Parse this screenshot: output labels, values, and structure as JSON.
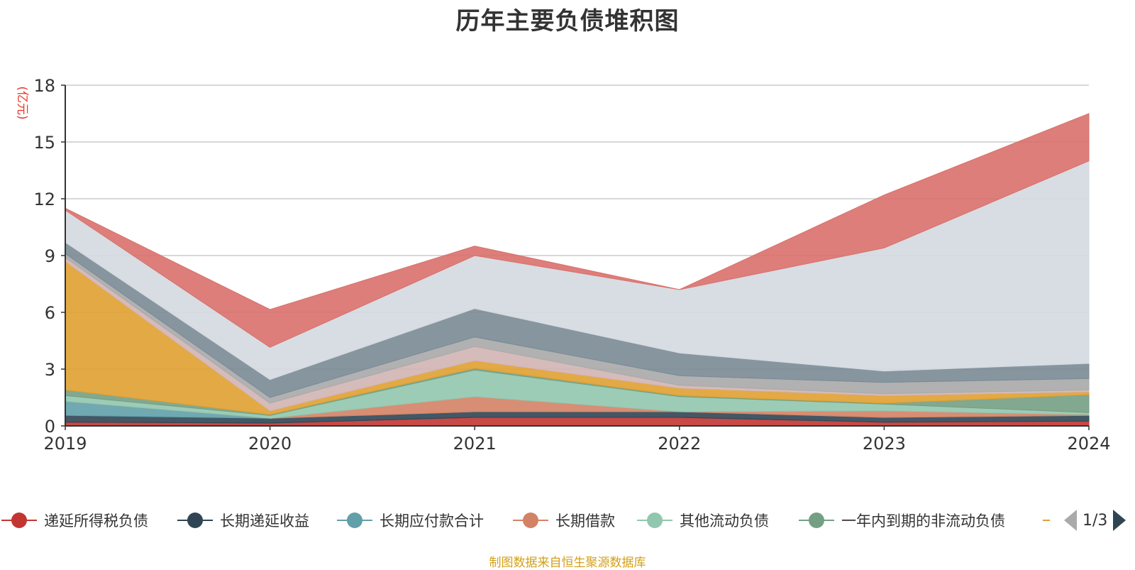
{
  "chart_data": {
    "type": "area",
    "title": "历年主要负债堆积图",
    "ylabel": "(亿元)",
    "ylim": [
      0,
      18
    ],
    "yticks": [
      "0",
      "3",
      "6",
      "9",
      "12",
      "15",
      "18"
    ],
    "x": [
      "2019",
      "2020",
      "2021",
      "2022",
      "2023",
      "2024"
    ],
    "grid": true,
    "legend_position": "bottom",
    "series": [
      {
        "name": "递延所得税负债",
        "color": "#c23531",
        "values": [
          0.2,
          0.15,
          0.45,
          0.45,
          0.2,
          0.25
        ]
      },
      {
        "name": "长期递延收益",
        "color": "#2f4554",
        "values": [
          0.35,
          0.25,
          0.3,
          0.3,
          0.25,
          0.3
        ]
      },
      {
        "name": "长期应付款合计",
        "color": "#61a0a8",
        "values": [
          0.75,
          0.0,
          0.0,
          0.0,
          0.0,
          0.0
        ]
      },
      {
        "name": "长期借款",
        "color": "#d48265",
        "values": [
          0.0,
          0.0,
          0.8,
          0.0,
          0.35,
          0.05
        ]
      },
      {
        "name": "其他流动负债",
        "color": "#91c7ae",
        "values": [
          0.3,
          0.15,
          1.4,
          0.8,
          0.35,
          0.1
        ]
      },
      {
        "name": "一年内到期的非流动负债",
        "color": "#749f83",
        "values": [
          0.3,
          0.05,
          0.1,
          0.05,
          0.05,
          0.95
        ]
      },
      {
        "name": "",
        "color": "#e0a030",
        "values": [
          6.8,
          0.2,
          0.4,
          0.4,
          0.4,
          0.15
        ]
      },
      {
        "name": "",
        "color": "#d2b4b4",
        "values": [
          0.2,
          0.4,
          0.75,
          0.15,
          0.1,
          0.1
        ]
      },
      {
        "name": "",
        "color": "#a9a9a9",
        "values": [
          0.2,
          0.3,
          0.5,
          0.5,
          0.6,
          0.6
        ]
      },
      {
        "name": "",
        "color": "#7a8a95",
        "values": [
          0.6,
          0.95,
          1.5,
          1.2,
          0.6,
          0.8
        ]
      },
      {
        "name": "",
        "color": "#d3d9e0",
        "values": [
          1.7,
          1.7,
          2.8,
          3.35,
          6.5,
          10.7
        ]
      },
      {
        "name": "",
        "color": "#d9706c",
        "values": [
          0.1,
          2.0,
          0.5,
          0.0,
          2.8,
          2.5
        ]
      }
    ]
  },
  "legend": {
    "page": "1/3"
  },
  "source_note": "制图数据来自恒生聚源数据库"
}
